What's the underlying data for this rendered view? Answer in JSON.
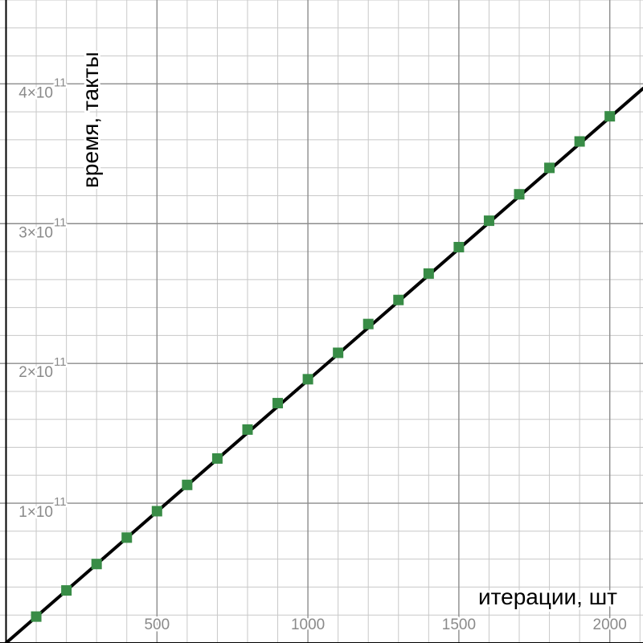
{
  "chart_data": {
    "type": "scatter",
    "xlabel": "итерации, шт",
    "ylabel": "время, такты",
    "xlim": [
      -20,
      2110
    ],
    "ylim": [
      0,
      460000000000.0
    ],
    "x_ticks": [
      {
        "value": 500,
        "label": "500"
      },
      {
        "value": 1000,
        "label": "1000"
      },
      {
        "value": 1500,
        "label": "1500"
      },
      {
        "value": 2000,
        "label": "2000"
      }
    ],
    "y_ticks": [
      {
        "value": 100000000000.0,
        "mantissa": "1×10",
        "exponent": "11"
      },
      {
        "value": 200000000000.0,
        "mantissa": "2×10",
        "exponent": "11"
      },
      {
        "value": 300000000000.0,
        "mantissa": "3×10",
        "exponent": "11"
      },
      {
        "value": 400000000000.0,
        "mantissa": "4×10",
        "exponent": "11"
      }
    ],
    "grid": true,
    "series": [
      {
        "kind": "points",
        "color": "#388c46",
        "x": [
          100,
          200,
          300,
          400,
          500,
          600,
          700,
          800,
          900,
          1000,
          1100,
          1200,
          1300,
          1400,
          1500,
          1600,
          1700,
          1800,
          1900,
          2000
        ],
        "y": [
          18900000000.0,
          37600000000.0,
          56500000000.0,
          75400000000.0,
          94300000000.0,
          113100000000.0,
          132000000000.0,
          152700000000.0,
          171600000000.0,
          188700000000.0,
          207600000000.0,
          228200000000.0,
          245400000000.0,
          264300000000.0,
          283200000000.0,
          302100000000.0,
          321000000000.0,
          339900000000.0,
          358800000000.0,
          376800000000.0
        ]
      },
      {
        "kind": "line",
        "color": "#000000",
        "x": [
          -20,
          2110
        ],
        "y": [
          -3760000000.0,
          396700000000.0
        ]
      }
    ]
  }
}
